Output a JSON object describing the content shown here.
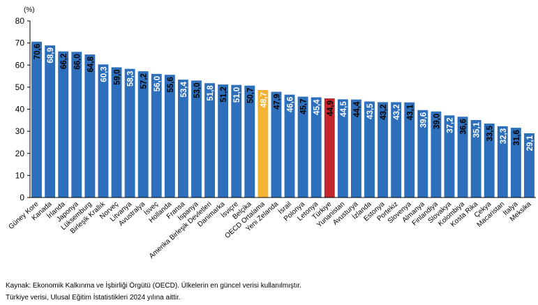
{
  "chart_data": {
    "type": "bar",
    "unit_label": "(%)",
    "ylim": [
      0,
      80
    ],
    "yticks": [
      "0",
      "10",
      "20",
      "30",
      "40",
      "50",
      "60",
      "70",
      "80"
    ],
    "grid": false,
    "categories": [
      "Güney Kore",
      "Kanada",
      "İrlanda",
      "Japonya",
      "Lüksemburg",
      "Birleşik Krallık",
      "Norveç",
      "Litvanya",
      "Avustralya",
      "İsveç",
      "Hollanda",
      "Fransa",
      "İspanya",
      "Amerika Birleşik Devletleri",
      "Danimarka",
      "İsviçre",
      "Belçika",
      "OECD Ortalama",
      "Yeni Zelanda",
      "İsrail",
      "Polonya",
      "Letonya",
      "Türkiye",
      "Yunanistan",
      "Avusturya",
      "İzlanda",
      "Estonya",
      "Portekiz",
      "Slovenya",
      "Almanya",
      "Finlandiya",
      "Slovakya",
      "Kolombiya",
      "Kosta Rika",
      "Çekya",
      "Macaristan",
      "İtalya",
      "Meksika"
    ],
    "values": [
      70.6,
      68.9,
      66.2,
      66.0,
      64.8,
      60.3,
      59.0,
      58.3,
      57.2,
      56.0,
      55.6,
      53.4,
      53.0,
      51.8,
      51.2,
      51.0,
      50.7,
      48.7,
      47.9,
      46.6,
      45.7,
      45.4,
      44.9,
      44.5,
      44.4,
      43.5,
      43.2,
      43.2,
      43.1,
      39.6,
      39.0,
      37.2,
      36.6,
      35.1,
      33.5,
      32.3,
      31.6,
      29.1
    ],
    "labels": [
      "70,6",
      "68,9",
      "66,2",
      "66,0",
      "64,8",
      "60,3",
      "59,0",
      "58,3",
      "57,2",
      "56,0",
      "55,6",
      "53,4",
      "53,0",
      "51,8",
      "51,2",
      "51,0",
      "50,7",
      "48,7",
      "47,9",
      "46,6",
      "45,7",
      "45,4",
      "44,9",
      "44,5",
      "44,4",
      "43,5",
      "43,2",
      "43,2",
      "43,1",
      "39,6",
      "39,0",
      "37,2",
      "36,6",
      "35,1",
      "33,5",
      "32,3",
      "31,6",
      "29,1"
    ],
    "label_colors": [
      "#000000",
      "#ffffff",
      "#000000",
      "#000000",
      "#000000",
      "#ffffff",
      "#000000",
      "#ffffff",
      "#000000",
      "#ffffff",
      "#000000",
      "#ffffff",
      "#000000",
      "#ffffff",
      "#000000",
      "#ffffff",
      "#000000",
      "#ffffff",
      "#000000",
      "#ffffff",
      "#000000",
      "#ffffff",
      "#000000",
      "#ffffff",
      "#000000",
      "#ffffff",
      "#000000",
      "#ffffff",
      "#000000",
      "#ffffff",
      "#000000",
      "#ffffff",
      "#000000",
      "#ffffff",
      "#000000",
      "#ffffff",
      "#000000",
      "#ffffff"
    ],
    "colors": {
      "default": "#2e6fbc",
      "oecd": "#f5b335",
      "turkiye": "#c1272d"
    },
    "highlight": {
      "OECD Ortalama": "oecd",
      "Türkiye": "turkiye"
    }
  },
  "source": {
    "line1": "Kaynak: Ekonomik Kalkınma ve İşbirliği Örgütü (OECD). Ülkelerin en güncel verisi kullanılmıştır.",
    "line2": "Türkiye verisi, Ulusal Eğitim İstatistikleri 2024 yılına aittir."
  }
}
